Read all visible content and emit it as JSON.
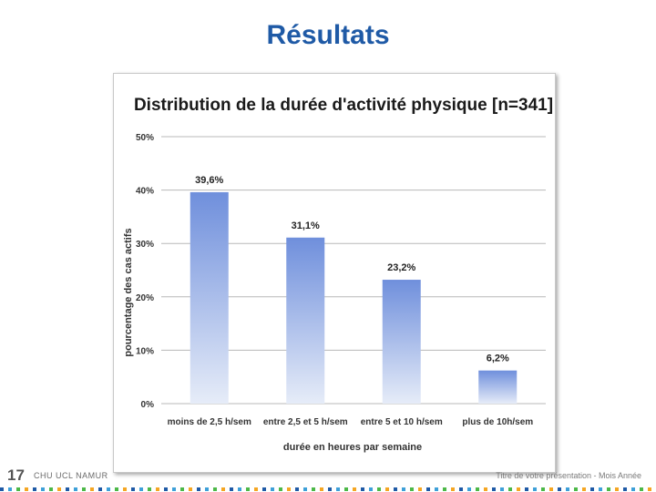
{
  "slide": {
    "title": "Résultats",
    "page_number": "17",
    "organization": "CHU UCL NAMUR",
    "footer_right": "Titre de votre présentation - Mois Année"
  },
  "colors": {
    "title": "#1f5aa6",
    "bar_top": "#6f8fdc",
    "bar_bottom": "#e6ecf8",
    "dot_palette": [
      "#1f5aa6",
      "#3ea0d8",
      "#4cb848",
      "#f5a623"
    ]
  },
  "chart_data": {
    "type": "bar",
    "title": "Distribution de la durée d'activité physique [n=341]",
    "xlabel": "durée en heures par semaine",
    "ylabel": "pourcentage des cas actifs",
    "categories": [
      "moins de 2,5 h/sem",
      "entre 2,5 et 5 h/sem",
      "entre 5 et 10 h/sem",
      "plus de 10h/sem"
    ],
    "values": [
      39.6,
      31.1,
      23.2,
      6.2
    ],
    "value_labels": [
      "39,6%",
      "31,1%",
      "23,2%",
      "6,2%"
    ],
    "ylim": [
      0,
      50
    ],
    "yticks": [
      0,
      10,
      20,
      30,
      40,
      50
    ],
    "ytick_labels": [
      "0%",
      "10%",
      "20%",
      "30%",
      "40%",
      "50%"
    ],
    "grid": true,
    "legend": "none"
  }
}
